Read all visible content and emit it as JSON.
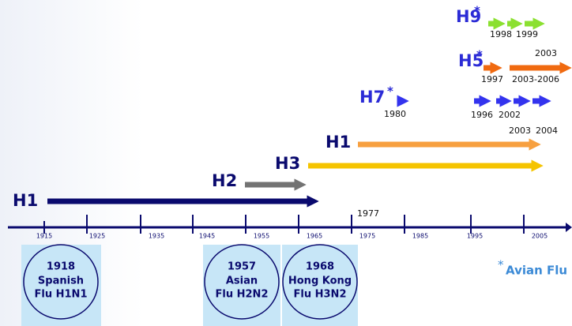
{
  "timeline": {
    "axis_years": [
      "1915",
      "1925",
      "1935",
      "1945",
      "1955",
      "1965",
      "1975",
      "1985",
      "1995",
      "2005"
    ],
    "strains": [
      {
        "label": "H1"
      },
      {
        "label": "H2"
      },
      {
        "label": "H3"
      },
      {
        "label": "H1"
      },
      {
        "label": "H7",
        "marker": "*",
        "years": [
          "1980"
        ]
      },
      {
        "label": "H5",
        "marker": "*",
        "years": [
          "1997",
          "2003",
          "2003-2006"
        ]
      },
      {
        "label": "H9",
        "marker": "*",
        "years": [
          "1998",
          "1999"
        ]
      }
    ],
    "unlabeled_row_years": [
      "1996",
      "2002",
      "2003",
      "2004"
    ],
    "marker_year": "1977",
    "pandemics": [
      {
        "year": "1918",
        "name": "Spanish",
        "subtype": "Flu H1N1"
      },
      {
        "year": "1957",
        "name": "Asian",
        "subtype": "Flu H2N2"
      },
      {
        "year": "1968",
        "name": "Hong Kong",
        "subtype": "Flu H3N2"
      }
    ],
    "legend": {
      "marker": "*",
      "text": "Avian Flu"
    }
  }
}
